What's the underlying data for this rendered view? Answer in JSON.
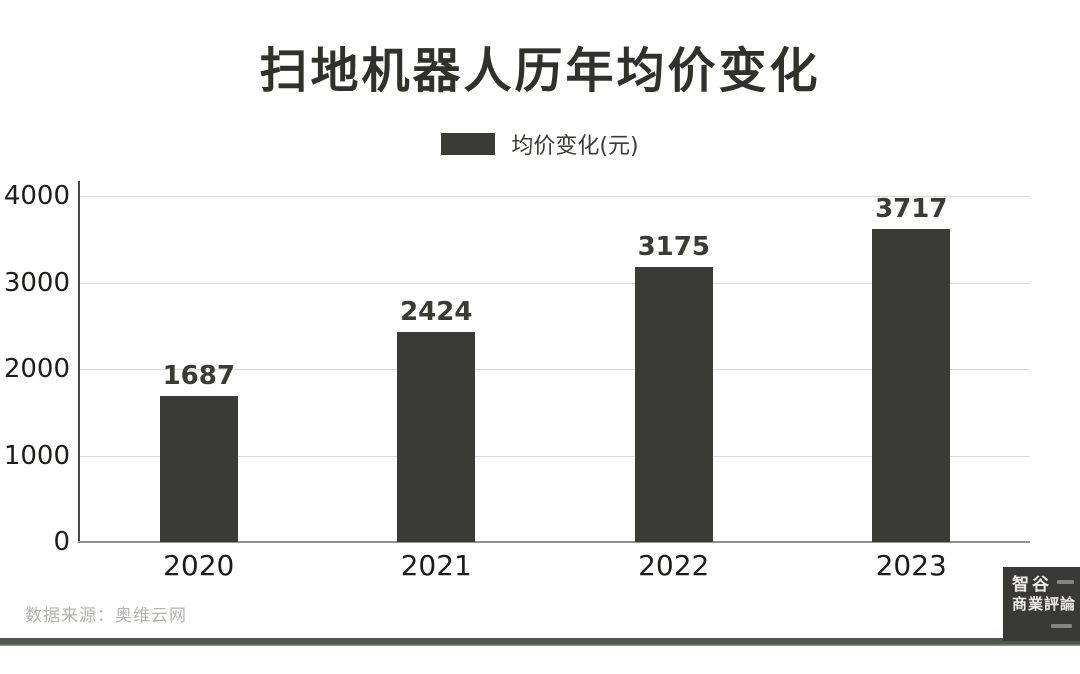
{
  "title": "扫地机器人历年均价变化",
  "legend": {
    "label": "均价变化(元)",
    "swatch_color": "#3a3b37"
  },
  "chart_data": {
    "type": "bar",
    "title": "扫地机器人历年均价变化",
    "series_name": "均价变化(元)",
    "categories": [
      "2020",
      "2021",
      "2022",
      "2023"
    ],
    "values": [
      1687,
      2424,
      3175,
      3717
    ],
    "xlabel": "",
    "ylabel": "",
    "ylim": [
      0,
      4000
    ],
    "yticks": [
      4000,
      3000,
      2000,
      1000,
      0
    ],
    "grid": true,
    "legend_position": "top-center",
    "bar_color": "#3a3b37"
  },
  "footer": {
    "source": "数据来源：奥维云网",
    "divider_color": "#4a594c"
  },
  "logo": {
    "line1": "智谷",
    "line2": "商業評論",
    "bg_color": "#393a36"
  }
}
